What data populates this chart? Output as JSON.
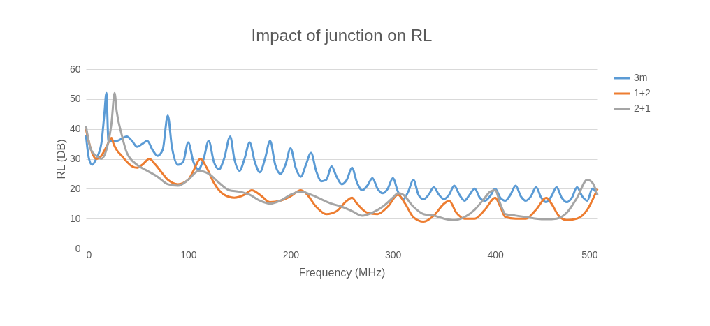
{
  "chart_data": {
    "type": "line",
    "title": "Impact of junction on RL",
    "xlabel": "Frequency (MHz)",
    "ylabel": "RL (DB)",
    "xlim": [
      0,
      500
    ],
    "xticks": [
      0,
      100,
      200,
      300,
      400,
      500
    ],
    "ylim": [
      0,
      60
    ],
    "yticks": [
      0,
      10,
      20,
      30,
      40,
      50,
      60
    ],
    "grid": "y",
    "legend": "right",
    "line_style": "solid",
    "marker": "none",
    "series": [
      {
        "name": "3m",
        "color": "#5b9bd5",
        "x": [
          0,
          3,
          6,
          10,
          15,
          18,
          20,
          22,
          25,
          30,
          40,
          45,
          50,
          55,
          60,
          65,
          70,
          75,
          80,
          84,
          90,
          95,
          100,
          105,
          110,
          115,
          120,
          125,
          130,
          135,
          141,
          145,
          150,
          155,
          160,
          165,
          170,
          175,
          180,
          185,
          190,
          195,
          200,
          205,
          210,
          215,
          220,
          225,
          230,
          235,
          240,
          245,
          250,
          255,
          260,
          265,
          270,
          275,
          280,
          285,
          290,
          295,
          300,
          305,
          310,
          315,
          320,
          325,
          330,
          335,
          340,
          345,
          350,
          355,
          360,
          365,
          370,
          375,
          380,
          385,
          390,
          395,
          400,
          405,
          410,
          415,
          420,
          425,
          430,
          435,
          440,
          445,
          450,
          455,
          460,
          465,
          470,
          475,
          480,
          485,
          490,
          495,
          500
        ],
        "values": [
          38,
          30,
          28,
          30,
          35,
          45,
          52,
          36,
          36,
          36,
          37.5,
          36,
          34,
          35,
          36,
          33,
          31,
          33,
          44.5,
          34,
          28,
          29,
          35.5,
          29,
          26.5,
          30,
          36,
          29,
          26.5,
          30,
          37.5,
          30,
          26,
          30,
          35.5,
          29,
          25.5,
          30,
          36,
          28,
          25,
          28,
          33.5,
          27,
          24,
          28,
          32,
          26,
          22.5,
          23,
          27.5,
          24,
          21.5,
          23,
          27,
          22,
          19.5,
          21,
          23.5,
          20,
          18.5,
          20,
          23.5,
          19,
          16.5,
          19,
          23,
          18,
          16.5,
          18,
          20.5,
          18,
          16.5,
          18,
          21,
          18,
          16,
          18,
          20,
          17,
          16,
          17.5,
          20,
          17,
          16,
          18,
          21,
          17.5,
          16,
          17.5,
          20.5,
          17,
          15.5,
          17.5,
          20.5,
          17,
          15.5,
          17,
          20.5,
          17.5,
          16,
          20,
          18
        ]
      },
      {
        "name": "1+2",
        "color": "#ed7d31",
        "x": [
          0,
          5,
          10,
          15,
          20,
          25,
          27,
          30,
          35,
          40,
          45,
          50,
          55,
          62,
          68,
          75,
          80,
          90,
          100,
          105,
          112,
          118,
          125,
          135,
          145,
          155,
          162,
          170,
          180,
          190,
          200,
          210,
          215,
          225,
          235,
          245,
          255,
          260,
          265,
          275,
          285,
          295,
          305,
          312,
          320,
          330,
          340,
          350,
          355,
          362,
          370,
          380,
          390,
          400,
          405,
          410,
          420,
          430,
          440,
          450,
          455,
          462,
          470,
          480,
          490,
          500
        ],
        "values": [
          40,
          33,
          30,
          31,
          34,
          37,
          35,
          33,
          31,
          29,
          27.5,
          27,
          28,
          30,
          28,
          25,
          23,
          21.5,
          23,
          26,
          30,
          27,
          22,
          18,
          17,
          18,
          19.5,
          18,
          15.5,
          16,
          17.5,
          19.5,
          18.5,
          14,
          11.5,
          12.5,
          16,
          17,
          15,
          12,
          11.5,
          14,
          18,
          15,
          10.5,
          9,
          11,
          15,
          16,
          12,
          10,
          10,
          13,
          17,
          14,
          10.5,
          10,
          10,
          13,
          17,
          15,
          11,
          9.5,
          10,
          13,
          20
        ]
      },
      {
        "name": "2+1",
        "color": "#a5a5a5",
        "x": [
          0,
          5,
          10,
          15,
          20,
          25,
          28,
          30,
          35,
          40,
          50,
          60,
          70,
          80,
          90,
          100,
          110,
          120,
          130,
          140,
          150,
          160,
          170,
          180,
          190,
          200,
          210,
          220,
          230,
          240,
          250,
          260,
          270,
          280,
          290,
          300,
          305,
          310,
          320,
          330,
          340,
          350,
          360,
          370,
          380,
          390,
          395,
          400,
          405,
          410,
          420,
          430,
          440,
          450,
          460,
          470,
          480,
          490,
          495,
          500
        ],
        "values": [
          41,
          33,
          31,
          30,
          33,
          42,
          52,
          46,
          38,
          32,
          28,
          26,
          24,
          21.5,
          21,
          23,
          26,
          25,
          22,
          19.5,
          19,
          18,
          16,
          15,
          16,
          18,
          19,
          18,
          16.5,
          15,
          14,
          12.5,
          11,
          12,
          14,
          17,
          18.5,
          18,
          14,
          11.5,
          11,
          10,
          9.5,
          10.5,
          13,
          17,
          19,
          19.5,
          15,
          11.5,
          11,
          10.5,
          10,
          9.8,
          10,
          12,
          17,
          23,
          22,
          18
        ]
      }
    ]
  }
}
